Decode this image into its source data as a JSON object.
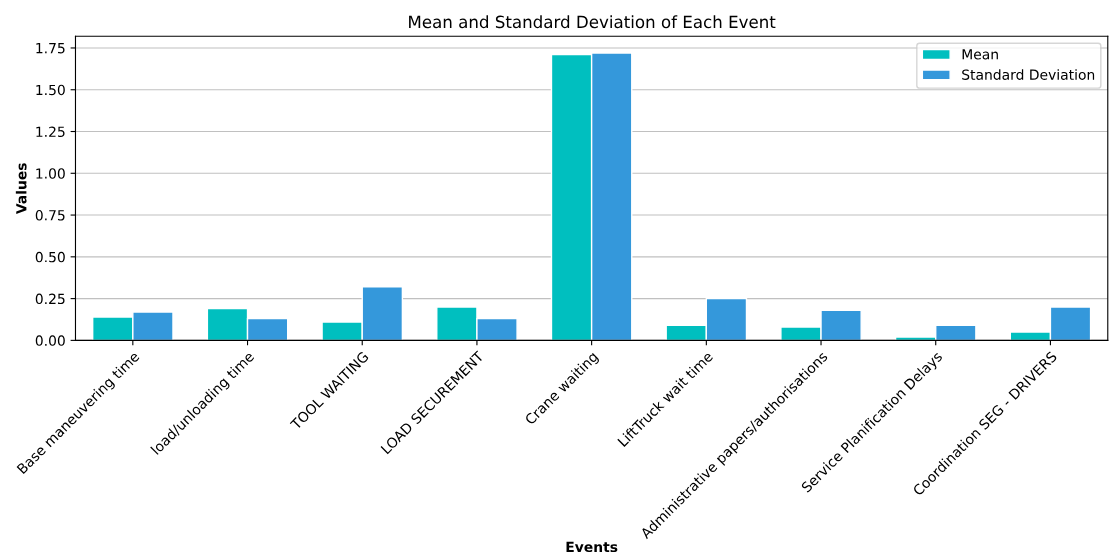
{
  "chart_data": {
    "type": "bar",
    "title": "Mean and Standard Deviation of Each Event",
    "xlabel": "Events",
    "ylabel": "Values",
    "categories": [
      "Base maneuvering time",
      "load/unloading time",
      "TOOL WAITING",
      "LOAD SECUREMENT",
      "Crane waiting",
      "LiftTruck wait time",
      "Administrative papers/authorisations",
      "Service Planification Delays",
      "Coordination SEG - DRIVERS"
    ],
    "series": [
      {
        "name": "Mean",
        "color": "#00bfbf",
        "values": [
          0.14,
          0.19,
          0.11,
          0.2,
          1.71,
          0.09,
          0.08,
          0.02,
          0.05
        ]
      },
      {
        "name": "Standard Deviation",
        "color": "#3498db",
        "values": [
          0.17,
          0.13,
          0.32,
          0.13,
          1.72,
          0.25,
          0.18,
          0.09,
          0.2
        ]
      }
    ],
    "ylim": [
      0,
      1.82
    ],
    "yticks": [
      {
        "value": 0,
        "label": "0.00"
      },
      {
        "value": 0.25,
        "label": "0.25"
      },
      {
        "value": 0.5,
        "label": "0.50"
      },
      {
        "value": 0.75,
        "label": "0.75"
      },
      {
        "value": 1.0,
        "label": "1.00"
      },
      {
        "value": 1.25,
        "label": "1.25"
      },
      {
        "value": 1.5,
        "label": "1.50"
      },
      {
        "value": 1.75,
        "label": "1.75"
      }
    ],
    "grid": "y",
    "legend": "top right"
  }
}
